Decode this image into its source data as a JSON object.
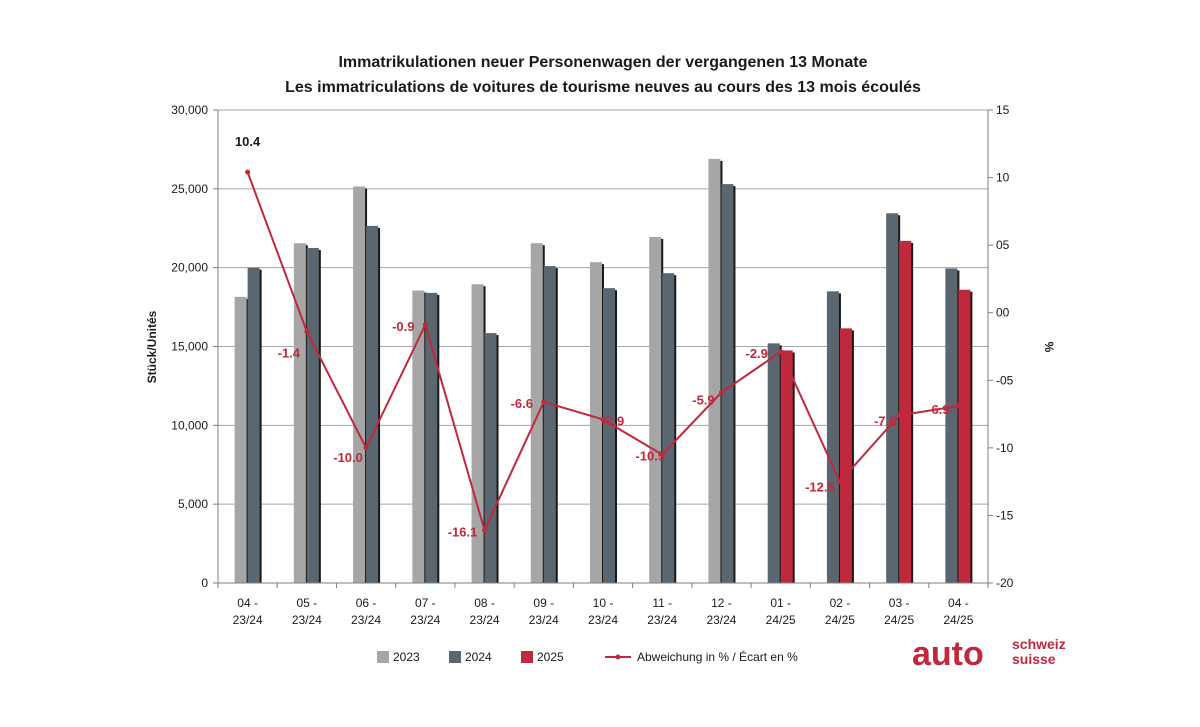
{
  "chart_data": {
    "type": "bar",
    "title": "Immatrikulationen neuer Personenwagen der vergangenen 13 Monate",
    "subtitle": "Les immatriculations de voitures de tourisme neuves au cours des 13 mois écoulés",
    "ylabel": "Stück/Unités",
    "y2label": "%",
    "ylim": [
      0,
      30000
    ],
    "y2lim": [
      -20,
      15
    ],
    "yticks": [
      "0",
      "5,000",
      "10,000",
      "15,000",
      "20,000",
      "25,000",
      "30,000"
    ],
    "y2ticks": [
      "-20",
      "-15",
      "-10",
      "-05",
      "00",
      "05",
      "10",
      "15"
    ],
    "grid": "horizontal",
    "legend_position": "bottom",
    "categories": [
      [
        "04 -",
        "23/24"
      ],
      [
        "05 -",
        "23/24"
      ],
      [
        "06 -",
        "23/24"
      ],
      [
        "07 -",
        "23/24"
      ],
      [
        "08 -",
        "23/24"
      ],
      [
        "09 -",
        "23/24"
      ],
      [
        "10 -",
        "23/24"
      ],
      [
        "11 -",
        "23/24"
      ],
      [
        "12 -",
        "23/24"
      ],
      [
        "01 -",
        "24/25"
      ],
      [
        "02 -",
        "24/25"
      ],
      [
        "03 -",
        "24/25"
      ],
      [
        "04 -",
        "24/25"
      ]
    ],
    "series": [
      {
        "name": "2023",
        "color": "#a6a6a6",
        "values": [
          18150,
          21550,
          25150,
          18550,
          18950,
          21550,
          20350,
          21950,
          26900,
          null,
          null,
          null,
          null
        ]
      },
      {
        "name": "2024",
        "color": "#5b6770",
        "values": [
          20000,
          21250,
          22650,
          18400,
          15850,
          20100,
          18700,
          19650,
          25300,
          15200,
          18500,
          23450,
          19950
        ]
      },
      {
        "name": "2025",
        "color": "#c0283d",
        "values": [
          null,
          null,
          null,
          null,
          null,
          null,
          null,
          null,
          null,
          14750,
          16150,
          21700,
          18600
        ]
      }
    ],
    "line_series": {
      "name": "Abweichung in % / Écart en %",
      "color": "#c0283d",
      "axis": "right",
      "values": [
        10.4,
        -1.4,
        -10.0,
        -0.9,
        -16.1,
        -6.6,
        -7.9,
        -10.5,
        -5.9,
        -2.9,
        -12.5,
        -7.6,
        -6.9
      ],
      "labels": [
        "10.4",
        "-1.4",
        "-10.0",
        "-0.9",
        "-16.1",
        "-6.6",
        "-7.9",
        "-10.5",
        "-5.9",
        "-2.9",
        "-12.5",
        "-7.6",
        "-6.9"
      ]
    }
  },
  "logo": {
    "brand": "auto",
    "line1": "schweiz",
    "line2": "suisse",
    "color": "#c0283d"
  }
}
